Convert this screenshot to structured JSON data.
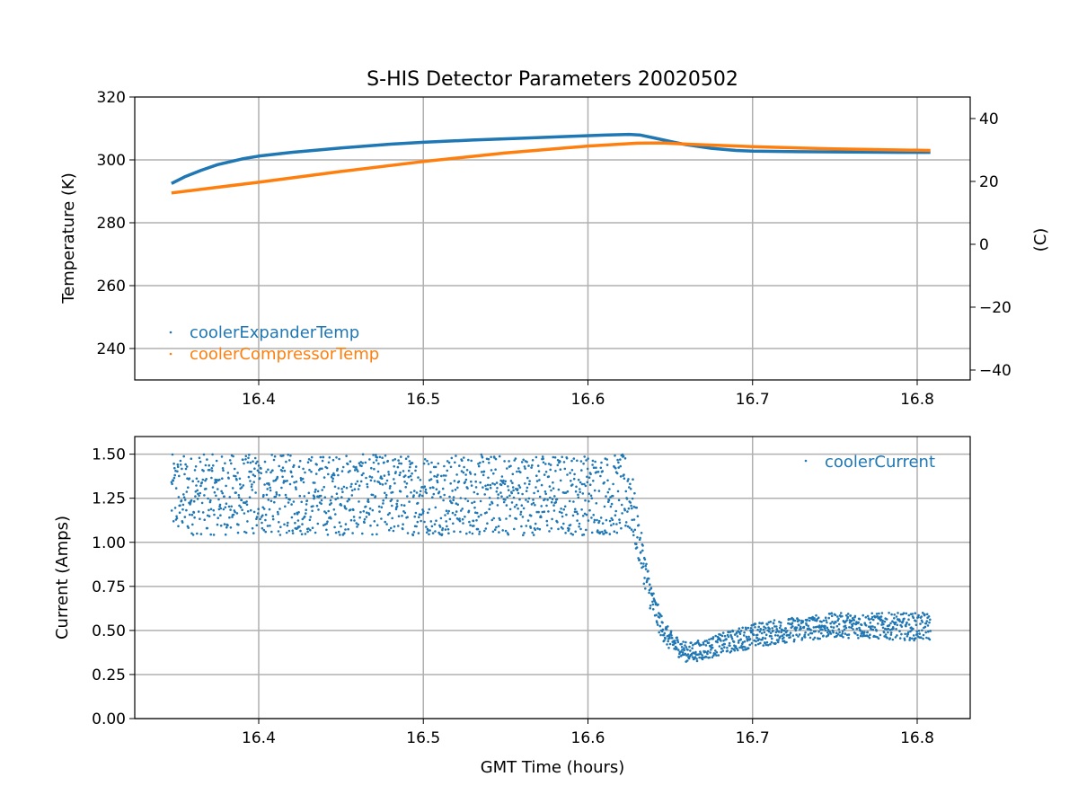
{
  "chart_data": [
    {
      "type": "scatter",
      "title": "S-HIS Detector Parameters 20020502",
      "xlabel": "",
      "ylabel": "Temperature (K)",
      "ylabel_right": "(C)",
      "xlim": [
        16.3247,
        16.8322
      ],
      "ylim": [
        230,
        320
      ],
      "xticks": [
        "16.4",
        "16.5",
        "16.6",
        "16.7",
        "16.8"
      ],
      "yticks": [
        "240",
        "260",
        "280",
        "300",
        "320"
      ],
      "yticks_right": [
        "−40",
        "−20",
        "0",
        "20",
        "40"
      ],
      "grid": true,
      "legend_position": "lower-left",
      "series": [
        {
          "name": "coolerExpanderTemp",
          "color": "#1f77b4",
          "x": [
            16.347,
            16.355,
            16.365,
            16.375,
            16.39,
            16.4,
            16.42,
            16.45,
            16.48,
            16.5,
            16.53,
            16.56,
            16.59,
            16.61,
            16.625,
            16.632,
            16.64,
            16.65,
            16.66,
            16.675,
            16.69,
            16.7,
            16.73,
            16.76,
            16.79,
            16.808
          ],
          "y": [
            292.5,
            294.6,
            296.7,
            298.5,
            300.3,
            301.2,
            302.4,
            303.8,
            305.0,
            305.6,
            306.3,
            306.9,
            307.5,
            307.9,
            308.1,
            307.9,
            307.0,
            305.9,
            304.8,
            303.7,
            303.0,
            302.8,
            302.6,
            302.5,
            302.4,
            302.4
          ]
        },
        {
          "name": "coolerCompressorTemp",
          "color": "#ff7f0e",
          "x": [
            16.347,
            16.4,
            16.45,
            16.5,
            16.55,
            16.6,
            16.63,
            16.645,
            16.66,
            16.7,
            16.75,
            16.808
          ],
          "y": [
            289.5,
            292.9,
            296.3,
            299.5,
            302.2,
            304.4,
            305.3,
            305.4,
            305.0,
            304.2,
            303.5,
            303.0
          ]
        }
      ]
    },
    {
      "type": "scatter",
      "title": "",
      "xlabel": "GMT Time (hours)",
      "ylabel": "Current (Amps)",
      "xlim": [
        16.3247,
        16.8322
      ],
      "ylim": [
        0,
        1.6
      ],
      "xticks": [
        "16.4",
        "16.5",
        "16.6",
        "16.7",
        "16.8"
      ],
      "yticks": [
        "0.00",
        "0.25",
        "0.50",
        "0.75",
        "1.00",
        "1.25",
        "1.50"
      ],
      "grid": true,
      "legend_position": "upper-right",
      "series": [
        {
          "name": "coolerCurrent",
          "color": "#1f77b4",
          "x": [
            16.347,
            16.626,
            16.628,
            16.632,
            16.636,
            16.64,
            16.645,
            16.65,
            16.66,
            16.67,
            16.68,
            16.7,
            16.72,
            16.75,
            16.78,
            16.808
          ],
          "y_min": [
            1.04,
            1.04,
            0.98,
            0.85,
            0.68,
            0.55,
            0.45,
            0.38,
            0.32,
            0.33,
            0.36,
            0.4,
            0.43,
            0.46,
            0.45,
            0.44
          ],
          "y_max": [
            1.5,
            1.5,
            1.3,
            1.08,
            0.88,
            0.72,
            0.58,
            0.5,
            0.43,
            0.45,
            0.48,
            0.54,
            0.57,
            0.6,
            0.6,
            0.6
          ]
        }
      ]
    }
  ]
}
